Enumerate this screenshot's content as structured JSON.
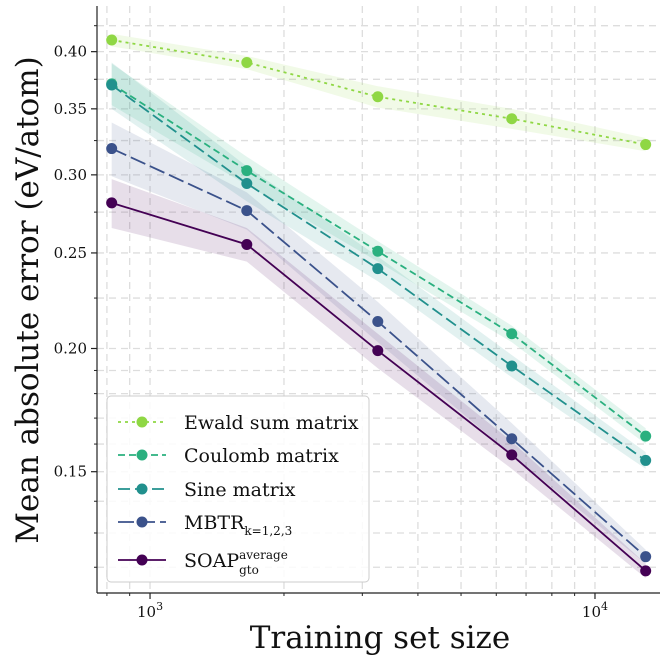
{
  "chart_data": {
    "type": "line",
    "xlabel": "Training set size",
    "ylabel": "Mean absolute error (eV/atom)",
    "xscale": "log",
    "yscale": "log",
    "xlim": [
      760,
      14000
    ],
    "ylim": [
      0.113,
      0.445
    ],
    "grid": true,
    "grid_style": "dashed",
    "legend_position": "lower-left",
    "x": [
      820,
      1650,
      3250,
      6500,
      13000
    ],
    "x_ticks": [
      {
        "value": 1000,
        "base": "10",
        "exp": "3"
      },
      {
        "value": 10000,
        "base": "10",
        "exp": "4"
      }
    ],
    "y_ticks": [
      {
        "value": 0.15,
        "label": "0.15"
      },
      {
        "value": 0.2,
        "label": "0.20"
      },
      {
        "value": 0.25,
        "label": "0.25"
      },
      {
        "value": 0.3,
        "label": "0.30"
      },
      {
        "value": 0.35,
        "label": "0.35"
      },
      {
        "value": 0.4,
        "label": "0.40"
      }
    ],
    "series": [
      {
        "name": "Ewald sum matrix",
        "color": "#8fd744",
        "dash": "3,4",
        "values": [
          0.411,
          0.39,
          0.36,
          0.342,
          0.322
        ],
        "band": [
          0.006,
          0.006,
          0.009,
          0.008,
          0.005
        ]
      },
      {
        "name": "Coulomb matrix",
        "color": "#2ab07f",
        "dash": "7,4",
        "values": [
          0.371,
          0.303,
          0.251,
          0.207,
          0.163
        ],
        "band": [
          0.018,
          0.01,
          0.006,
          0.004,
          0.003
        ]
      },
      {
        "name": "Sine matrix",
        "color": "#21908d",
        "dash": "12,5",
        "values": [
          0.37,
          0.294,
          0.241,
          0.192,
          0.154
        ],
        "band": [
          0.02,
          0.012,
          0.007,
          0.005,
          0.003
        ]
      },
      {
        "name": "MBTR",
        "name_sub": "k=1,2,3",
        "color": "#3b528b",
        "dash": "16,5",
        "values": [
          0.319,
          0.276,
          0.213,
          0.162,
          0.123
        ],
        "band": [
          0.02,
          0.012,
          0.01,
          0.006,
          0.002
        ]
      },
      {
        "name": "SOAP",
        "name_sup": "average",
        "name_sub": "gto",
        "color": "#440154",
        "dash": "",
        "values": [
          0.281,
          0.255,
          0.199,
          0.156,
          0.119
        ],
        "band": [
          0.016,
          0.01,
          0.008,
          0.005,
          0.002
        ]
      }
    ]
  }
}
